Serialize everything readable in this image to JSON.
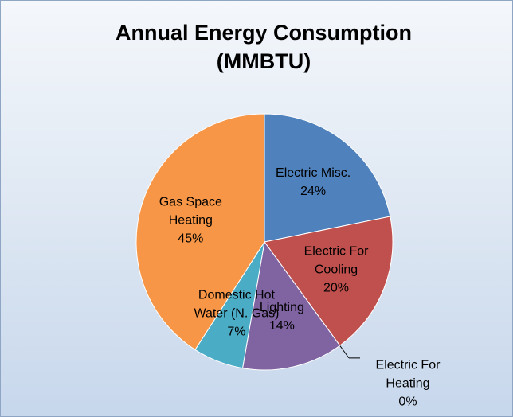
{
  "chart_data": {
    "type": "pie",
    "title": "Annual Energy Consumption (MMBTU)",
    "categories": [
      "Electric Misc.",
      "Electric For Cooling",
      "Electric For Heating",
      "Lighting",
      "Domestic Hot Water (N. Gas)",
      "Gas Space Heating"
    ],
    "values": [
      24,
      20,
      0,
      14,
      7,
      45
    ],
    "value_labels": [
      "24%",
      "20%",
      "0%",
      "14%",
      "7%",
      "45%"
    ],
    "colors": [
      "#4f81bd",
      "#c0504d",
      "#9bbb59",
      "#8064a2",
      "#4bacc6",
      "#f79646"
    ]
  }
}
